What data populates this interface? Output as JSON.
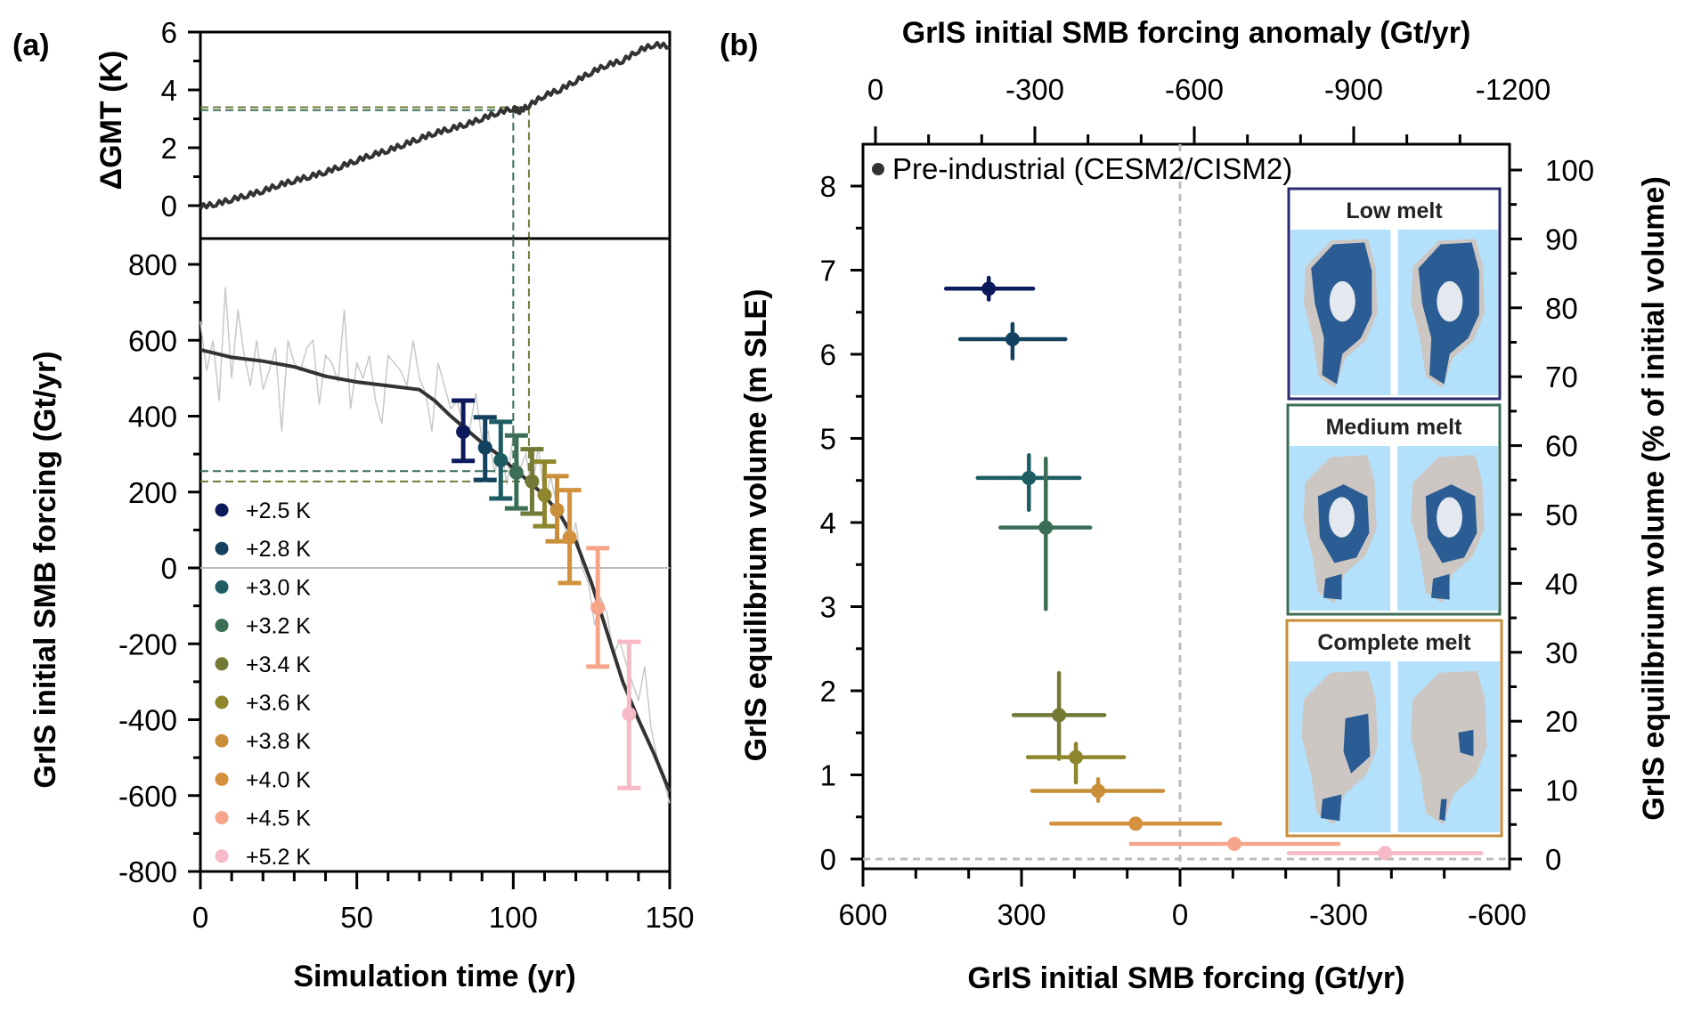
{
  "chart_data": [
    {
      "panel": "(a)",
      "type": "line",
      "subplots": [
        {
          "name": "gmt",
          "ylabel": "ΔGMT (K)",
          "ylim": [
            -1.15,
            6
          ],
          "yticks": [
            0,
            2,
            4,
            6
          ],
          "yticks_minor": [
            1,
            3,
            5
          ],
          "series": [
            {
              "name": "ΔGMT",
              "color": "#333333",
              "x": [
                0,
                5,
                10,
                15,
                20,
                25,
                30,
                35,
                40,
                45,
                50,
                55,
                60,
                65,
                70,
                75,
                80,
                85,
                90,
                95,
                100,
                102,
                105,
                110,
                115,
                120,
                125,
                130,
                135,
                140,
                145,
                150
              ],
              "y": [
                -0.05,
                0.05,
                0.2,
                0.35,
                0.5,
                0.7,
                0.85,
                1.0,
                1.15,
                1.35,
                1.55,
                1.75,
                1.9,
                2.1,
                2.3,
                2.5,
                2.65,
                2.8,
                3.0,
                3.2,
                3.35,
                3.25,
                3.45,
                3.8,
                4.0,
                4.3,
                4.6,
                4.85,
                5.0,
                5.35,
                5.55,
                5.5
              ]
            }
          ],
          "reference_lines": [
            {
              "label": "+3.2 K",
              "color": "#3b6e55",
              "x": 100,
              "y": 3.3
            },
            {
              "label": "+3.4 K",
              "color": "#737a35",
              "x": 105,
              "y": 3.4
            }
          ]
        },
        {
          "name": "smb",
          "ylabel": "GrIS initial SMB forcing (Gt/yr)",
          "xlabel": "Simulation time (yr)",
          "xlim": [
            0,
            150
          ],
          "xticks": [
            0,
            50,
            100,
            150
          ],
          "ylim": [
            -800,
            868
          ],
          "yticks": [
            800,
            600,
            400,
            200,
            0,
            -200,
            -400,
            -600,
            -800
          ],
          "yticks_minor": [
            700,
            500,
            300,
            100,
            -100,
            -300,
            -500,
            -700
          ],
          "smoothed": {
            "color": "#333333",
            "x": [
              0,
              10,
              20,
              30,
              40,
              50,
              60,
              70,
              75,
              80,
              85,
              90,
              95,
              100,
              105,
              110,
              115,
              120,
              125,
              130,
              135,
              140,
              145,
              150
            ],
            "y": [
              575,
              555,
              545,
              530,
              505,
              490,
              480,
              470,
              440,
              400,
              365,
              330,
              300,
              262,
              228,
              190,
              140,
              70,
              -40,
              -170,
              -300,
              -400,
              -490,
              -590
            ]
          },
          "raw": {
            "color": "#c8c8c8",
            "x": [
              0,
              2,
              4,
              6,
              8,
              10,
              12,
              14,
              16,
              18,
              20,
              22,
              24,
              26,
              28,
              30,
              32,
              34,
              36,
              38,
              40,
              42,
              44,
              46,
              48,
              50,
              52,
              54,
              56,
              58,
              60,
              62,
              64,
              66,
              68,
              70,
              72,
              74,
              76,
              78,
              80,
              82,
              84,
              86,
              88,
              90,
              92,
              94,
              96,
              98,
              100,
              102,
              104,
              106,
              108,
              110,
              112,
              114,
              116,
              118,
              120,
              122,
              124,
              126,
              128,
              130,
              132,
              134,
              136,
              138,
              140,
              142,
              144,
              146,
              148,
              150
            ],
            "y": [
              650,
              520,
              600,
              440,
              740,
              500,
              680,
              560,
              480,
              600,
              470,
              520,
              580,
              360,
              600,
              540,
              520,
              580,
              600,
              430,
              560,
              540,
              490,
              680,
              420,
              540,
              500,
              560,
              440,
              380,
              560,
              540,
              520,
              480,
              600,
              500,
              460,
              360,
              540,
              480,
              420,
              440,
              380,
              360,
              460,
              340,
              360,
              250,
              320,
              220,
              350,
              260,
              300,
              200,
              320,
              180,
              240,
              160,
              120,
              60,
              120,
              0,
              -40,
              -150,
              -80,
              -120,
              -230,
              -190,
              -250,
              -300,
              -350,
              -260,
              -420,
              -500,
              -560,
              -620
            ]
          },
          "zero_line_color": "#bbbbbb",
          "reference_lines": [
            {
              "label": "+3.2 K",
              "color": "#3b6e55",
              "x": 100,
              "y": 255
            },
            {
              "label": "+3.4 K",
              "color": "#737a35",
              "x": 105,
              "y": 228
            }
          ],
          "points": [
            {
              "label": "+2.5 K",
              "color": "#0c1a5c",
              "x": 84,
              "y": 359,
              "y_low": 282,
              "y_high": 441
            },
            {
              "label": "+2.8 K",
              "color": "#12425f",
              "x": 91,
              "y": 317,
              "y_low": 232,
              "y_high": 397
            },
            {
              "label": "+3.0 K",
              "color": "#1c5c62",
              "x": 96,
              "y": 284,
              "y_low": 183,
              "y_high": 385
            },
            {
              "label": "+3.2 K",
              "color": "#3b6e55",
              "x": 101,
              "y": 251,
              "y_low": 157,
              "y_high": 349
            },
            {
              "label": "+3.4 K",
              "color": "#737a35",
              "x": 106,
              "y": 228,
              "y_low": 143,
              "y_high": 313
            },
            {
              "label": "+3.6 K",
              "color": "#8e862d",
              "x": 110,
              "y": 192,
              "y_low": 110,
              "y_high": 280
            },
            {
              "label": "+3.8 K",
              "color": "#c98e3a",
              "x": 114,
              "y": 153,
              "y_low": 70,
              "y_high": 242
            },
            {
              "label": "+4.0 K",
              "color": "#d3913e",
              "x": 118,
              "y": 80,
              "y_low": -40,
              "y_high": 205
            },
            {
              "label": "+4.5 K",
              "color": "#f6a58b",
              "x": 127,
              "y": -105,
              "y_low": -260,
              "y_high": 52
            },
            {
              "label": "+5.2 K",
              "color": "#f7b9c5",
              "x": 137,
              "y": -385,
              "y_low": -580,
              "y_high": -195
            }
          ],
          "legend": {
            "placement": "bottom-left",
            "entries": [
              "+2.5 K",
              "+2.8 K",
              "+3.0 K",
              "+3.2 K",
              "+3.4 K",
              "+3.6 K",
              "+3.8 K",
              "+4.0 K",
              "+4.5 K",
              "+5.2 K"
            ]
          }
        }
      ]
    },
    {
      "panel": "(b)",
      "type": "scatter",
      "xlabel": "GrIS initial SMB forcing (Gt/yr)",
      "xlim": [
        600,
        -500
      ],
      "xticks": [
        600,
        300,
        0,
        -300,
        -600
      ],
      "xticks_minor": [
        500,
        400,
        200,
        100,
        -100,
        -200,
        -400,
        -500
      ],
      "top_xlabel": "GrIS initial SMB forcing anomaly (Gt/yr)",
      "top_xticks": [
        0,
        -300,
        -600,
        -900,
        -1200
      ],
      "ylabel": "GrIS equilibrium volume (m SLE)",
      "ylim": [
        -0.15,
        8.4
      ],
      "yticks": [
        0,
        1,
        2,
        3,
        4,
        5,
        6,
        7,
        8
      ],
      "right_ylabel": "GrIS equilibrium volume (% of initial volume)",
      "right_yticks": [
        0,
        10,
        20,
        30,
        40,
        50,
        60,
        70,
        80,
        90,
        100
      ],
      "reference": {
        "label": "Pre-industrial (CESM2/CISM2)",
        "color": "#333333"
      },
      "grid": false,
      "points": [
        {
          "label": "+2.5 K",
          "color": "#0c1a5c",
          "x": 362,
          "y": 6.78,
          "x_low": 443,
          "x_high": 278,
          "y_low": 6.65,
          "y_high": 6.91
        },
        {
          "label": "+2.8 K",
          "color": "#12425f",
          "x": 317,
          "y": 6.18,
          "x_low": 416,
          "x_high": 217,
          "y_low": 5.95,
          "y_high": 6.36
        },
        {
          "label": "+3.0 K",
          "color": "#1c5c62",
          "x": 286,
          "y": 4.53,
          "x_low": 383,
          "x_high": 190,
          "y_low": 4.15,
          "y_high": 4.8
        },
        {
          "label": "+3.2 K",
          "color": "#3b6e55",
          "x": 254,
          "y": 3.94,
          "x_low": 340,
          "x_high": 170,
          "y_low": 2.97,
          "y_high": 4.76
        },
        {
          "label": "+3.4 K",
          "color": "#737a35",
          "x": 229,
          "y": 1.71,
          "x_low": 315,
          "x_high": 143,
          "y_low": 1.19,
          "y_high": 2.21
        },
        {
          "label": "+3.6 K",
          "color": "#8e862d",
          "x": 197,
          "y": 1.21,
          "x_low": 288,
          "x_high": 106,
          "y_low": 0.91,
          "y_high": 1.37
        },
        {
          "label": "+3.8 K",
          "color": "#c98e3a",
          "x": 155,
          "y": 0.81,
          "x_low": 280,
          "x_high": 32,
          "y_low": 0.69,
          "y_high": 0.95
        },
        {
          "label": "+4.0 K",
          "color": "#d3913e",
          "x": 84,
          "y": 0.42,
          "x_low": 244,
          "x_high": -76,
          "y_low": 0.42,
          "y_high": 0.42
        },
        {
          "label": "+4.5 K",
          "color": "#f6a58b",
          "x": -103,
          "y": 0.18,
          "x_low": 93,
          "x_high": -300,
          "y_low": 0.18,
          "y_high": 0.18
        },
        {
          "label": "+5.2 K",
          "color": "#f7b9c5",
          "x": -388,
          "y": 0.07,
          "x_low": -206,
          "x_high": -570,
          "y_low": 0.07,
          "y_high": 0.07
        }
      ],
      "insets": [
        {
          "title": "Low melt",
          "border_color": "#2a2a6e",
          "state": "low"
        },
        {
          "title": "Medium melt",
          "border_color": "#3b6e55",
          "state": "medium"
        },
        {
          "title": "Complete melt",
          "border_color": "#c98e3a",
          "state": "complete"
        }
      ]
    }
  ],
  "labels": {
    "panel_a": "(a)",
    "panel_b": "(b)",
    "a_top_ylabel": "ΔGMT (K)",
    "a_bottom_ylabel": "GrIS initial SMB forcing (Gt/yr)",
    "a_xlabel": "Simulation time (yr)",
    "b_top_xlabel": "GrIS initial SMB forcing anomaly (Gt/yr)",
    "b_xlabel": "GrIS initial SMB forcing (Gt/yr)",
    "b_ylabel": "GrIS equilibrium volume (m SLE)",
    "b_right_ylabel": "GrIS equilibrium volume (% of initial volume)",
    "b_reference": "Pre-industrial (CESM2/CISM2)"
  }
}
